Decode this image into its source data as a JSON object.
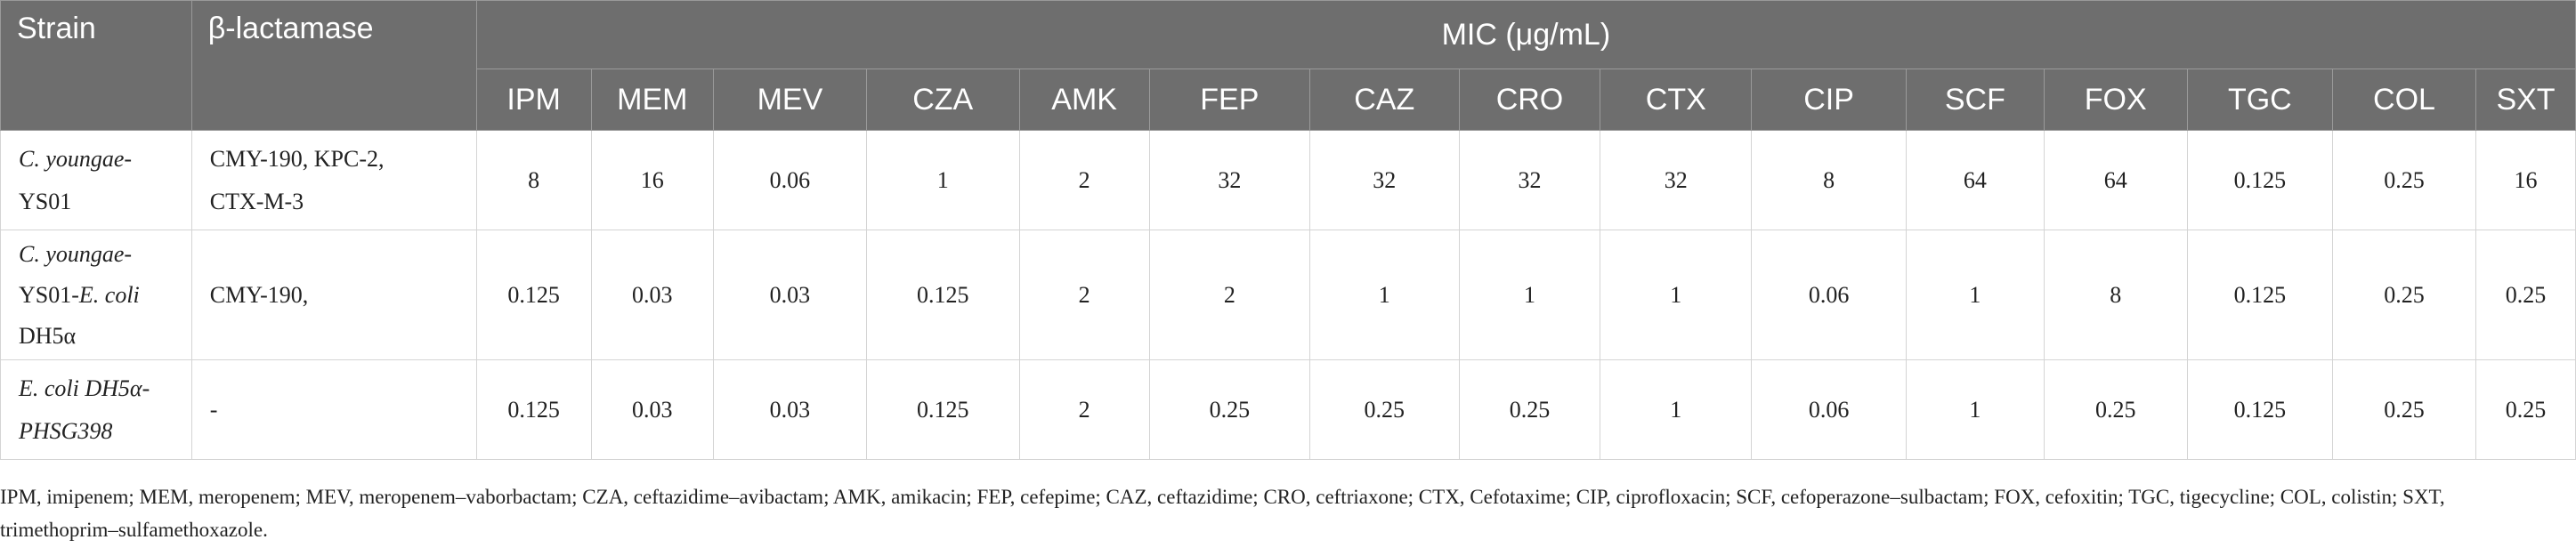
{
  "headers": {
    "strain": "Strain",
    "beta_lactamase": "β-lactamase",
    "mic": "MIC (μg/mL)",
    "antibiotics": [
      "IPM",
      "MEM",
      "MEV",
      "CZA",
      "AMK",
      "FEP",
      "CAZ",
      "CRO",
      "CTX",
      "CIP",
      "SCF",
      "FOX",
      "TGC",
      "COL",
      "SXT"
    ]
  },
  "rows": [
    {
      "strain_lines": [
        "C. youngae-",
        "YS01"
      ],
      "bla_lines": [
        "CMY-190, KPC-2,",
        "CTX-M-3"
      ],
      "values": [
        "8",
        "16",
        "0.06",
        "1",
        "2",
        "32",
        "32",
        "32",
        "32",
        "8",
        "64",
        "64",
        "0.125",
        "0.25",
        "16"
      ]
    },
    {
      "strain_lines": [
        "C. youngae-",
        "YS01-",
        "E. coli",
        "DH5α"
      ],
      "bla_lines": [
        "CMY-190,"
      ],
      "values": [
        "0.125",
        "0.03",
        "0.03",
        "0.125",
        "2",
        "2",
        "1",
        "1",
        "1",
        "0.06",
        "1",
        "8",
        "0.125",
        "0.25",
        "0.25"
      ]
    },
    {
      "strain_lines": [
        "E. coli DH5α-",
        "PHSG398"
      ],
      "bla_lines": [
        "-"
      ],
      "values": [
        "0.125",
        "0.03",
        "0.03",
        "0.125",
        "2",
        "0.25",
        "0.25",
        "0.25",
        "1",
        "0.06",
        "1",
        "0.25",
        "0.125",
        "0.25",
        "0.25"
      ]
    }
  ],
  "footnote": "IPM, imipenem; MEM, meropenem; MEV, meropenem–vaborbactam; CZA, ceftazidime–avibactam; AMK, amikacin; FEP, cefepime; CAZ, ceftazidime; CRO, ceftriaxone; CTX, Cefotaxime; CIP, ciprofloxacin; SCF, cefoperazone–sulbactam; FOX, cefoxitin; TGC, tigecycline; COL, colistin; SXT, trimethoprim–sulfamethoxazole."
}
